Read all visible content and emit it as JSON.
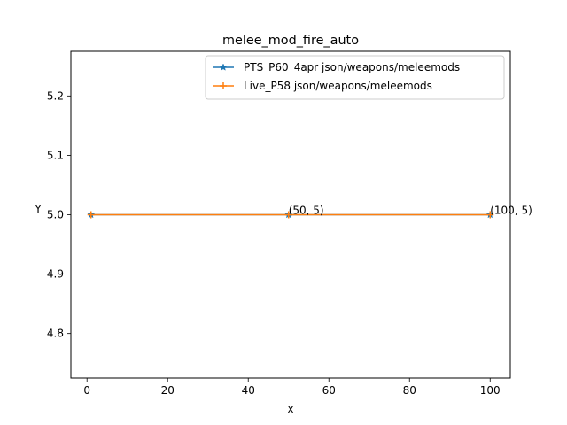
{
  "chart_data": {
    "type": "line",
    "title": "melee_mod_fire_auto",
    "xlabel": "X",
    "ylabel": "Y",
    "xlim": [
      -4,
      105
    ],
    "ylim": [
      4.725,
      5.275
    ],
    "xticks": [
      0,
      20,
      40,
      60,
      80,
      100
    ],
    "yticks": [
      4.8,
      4.9,
      5.0,
      5.1,
      5.2
    ],
    "xtick_labels": [
      "0",
      "20",
      "40",
      "60",
      "80",
      "100"
    ],
    "ytick_labels": [
      "4.8",
      "4.9",
      "5.0",
      "5.1",
      "5.2"
    ],
    "legend_position": "top-right",
    "grid": false,
    "series": [
      {
        "name": "PTS_P60_4apr json/weapons/meleemods",
        "color": "#1f77b4",
        "marker": "star",
        "x": [
          1,
          50,
          100
        ],
        "y": [
          5,
          5,
          5
        ]
      },
      {
        "name": "Live_P58 json/weapons/meleemods",
        "color": "#ff7f0e",
        "marker": "plus",
        "x": [
          1,
          50,
          100
        ],
        "y": [
          5,
          5,
          5
        ]
      }
    ],
    "annotations": [
      {
        "text": "(50, 5)",
        "x": 50,
        "y": 5
      },
      {
        "text": "(100, 5)",
        "x": 100,
        "y": 5
      }
    ]
  }
}
